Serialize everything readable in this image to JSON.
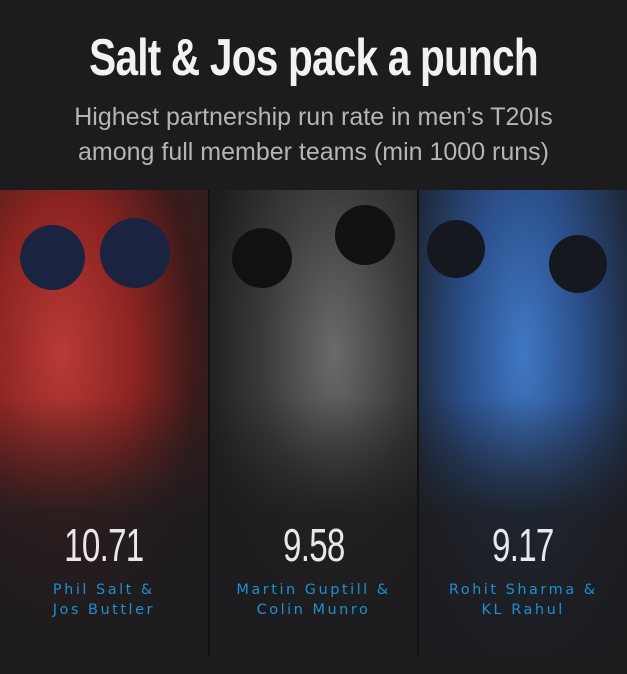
{
  "title": "Salt & Jos pack a punch",
  "subtitle": [
    "Highest partnership run rate in men’s T20Is",
    "among full member teams (min 1000 runs)"
  ],
  "colors": {
    "background": "#1c1c1e",
    "accent": "#1e8fd0"
  },
  "partnerships": [
    {
      "run_rate": "10.71",
      "names": [
        "Phil Salt &",
        "Jos Buttler"
      ],
      "team_color": "#b83a35"
    },
    {
      "run_rate": "9.58",
      "names": [
        "Martin Guptill &",
        "Colin Munro"
      ],
      "team_color": "#3b3b3d"
    },
    {
      "run_rate": "9.17",
      "names": [
        "Rohit Sharma &",
        "KL Rahul"
      ],
      "team_color": "#3f78c4"
    }
  ]
}
